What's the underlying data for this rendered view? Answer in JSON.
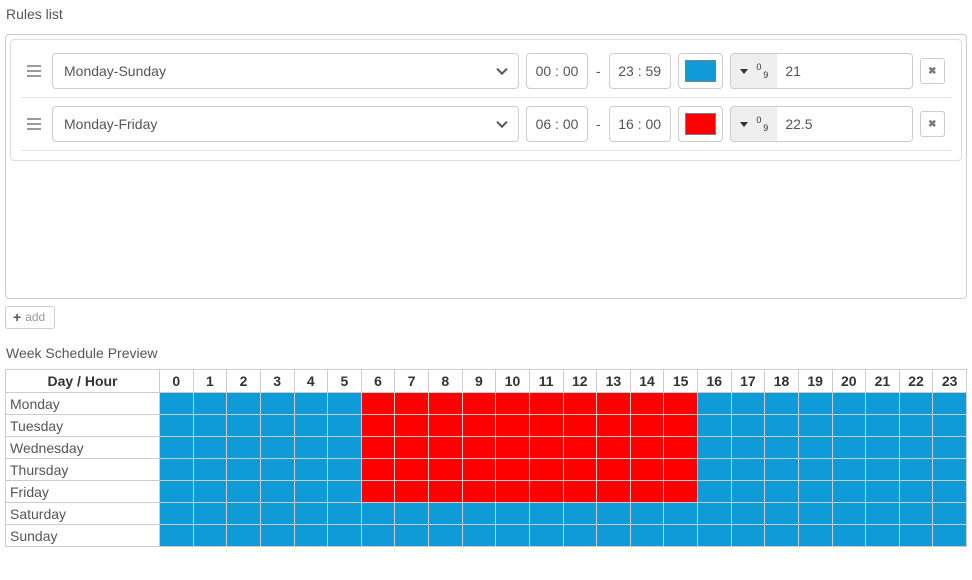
{
  "rules_list": {
    "title": "Rules list",
    "time_separator": "-",
    "value_addon": {
      "sup_digit": "0",
      "sub_digit": "9"
    },
    "add_button_icon": "+",
    "add_button_label": "add",
    "remove_icon": "✖",
    "rules": [
      {
        "days_label": "Monday-Sunday",
        "start_time": "00 : 00",
        "end_time": "23 : 59",
        "color": "#0f9ad8",
        "value": "21"
      },
      {
        "days_label": "Monday-Friday",
        "start_time": "06 : 00",
        "end_time": "16 : 00",
        "color": "#ff0000",
        "value": "22.5"
      }
    ]
  },
  "schedule": {
    "title": "Week Schedule Preview",
    "corner_header": "Day / Hour",
    "hour_headers": [
      "0",
      "1",
      "2",
      "3",
      "4",
      "5",
      "6",
      "7",
      "8",
      "9",
      "10",
      "11",
      "12",
      "13",
      "14",
      "15",
      "16",
      "17",
      "18",
      "19",
      "20",
      "21",
      "22",
      "23"
    ],
    "cell_colors": {
      "b": "#0f9ad8",
      "r": "#ff0000"
    },
    "rows": [
      {
        "day": "Monday",
        "pattern": "bbbbbbrrrrrrrrrrbbbbbbbb"
      },
      {
        "day": "Tuesday",
        "pattern": "bbbbbbrrrrrrrrrrbbbbbbbb"
      },
      {
        "day": "Wednesday",
        "pattern": "bbbbbbrrrrrrrrrrbbbbbbbb"
      },
      {
        "day": "Thursday",
        "pattern": "bbbbbbrrrrrrrrrrbbbbbbbb"
      },
      {
        "day": "Friday",
        "pattern": "bbbbbbrrrrrrrrrrbbbbbbbb"
      },
      {
        "day": "Saturday",
        "pattern": "bbbbbbbbbbbbbbbbbbbbbbbb"
      },
      {
        "day": "Sunday",
        "pattern": "bbbbbbbbbbbbbbbbbbbbbbbb"
      }
    ]
  }
}
